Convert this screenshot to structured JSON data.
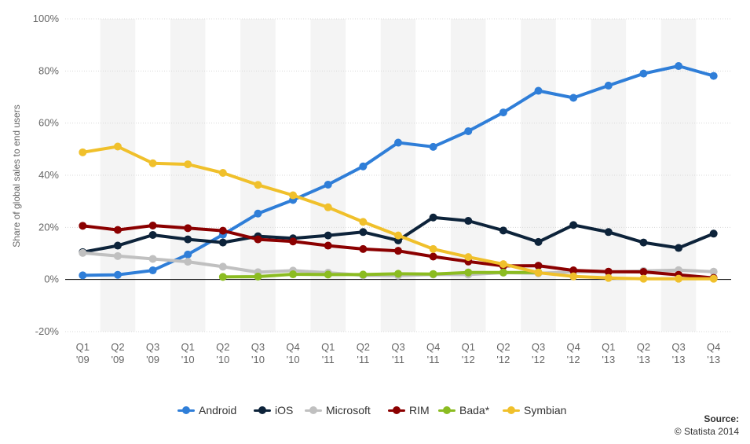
{
  "chart_data": {
    "type": "line",
    "title": "",
    "xlabel": "",
    "ylabel": "Share of global sales to end users",
    "ylim": [
      -20,
      100
    ],
    "yticks": [
      -20,
      0,
      20,
      40,
      60,
      80,
      100
    ],
    "ytick_labels": [
      "-20%",
      "0%",
      "20%",
      "40%",
      "60%",
      "80%",
      "100%"
    ],
    "categories": [
      [
        "Q1",
        "'09"
      ],
      [
        "Q2",
        "'09"
      ],
      [
        "Q3",
        "'09"
      ],
      [
        "Q1",
        "'10"
      ],
      [
        "Q2",
        "'10"
      ],
      [
        "Q3",
        "'10"
      ],
      [
        "Q4",
        "'10"
      ],
      [
        "Q1",
        "'11"
      ],
      [
        "Q2",
        "'11"
      ],
      [
        "Q3",
        "'11"
      ],
      [
        "Q4",
        "'11"
      ],
      [
        "Q1",
        "'12"
      ],
      [
        "Q2",
        "'12"
      ],
      [
        "Q3",
        "'12"
      ],
      [
        "Q4",
        "'12"
      ],
      [
        "Q1",
        "'13"
      ],
      [
        "Q2",
        "'13"
      ],
      [
        "Q3",
        "'13"
      ],
      [
        "Q4",
        "'13"
      ]
    ],
    "series": [
      {
        "name": "Android",
        "color": "#2f7ed8",
        "values": [
          1.6,
          1.8,
          3.5,
          9.6,
          17.2,
          25.3,
          30.5,
          36.4,
          43.4,
          52.5,
          50.9,
          56.9,
          64.1,
          72.4,
          69.7,
          74.4,
          79.0,
          81.9,
          78.1
        ]
      },
      {
        "name": "iOS",
        "color": "#0d233a",
        "values": [
          10.5,
          13.0,
          17.1,
          15.4,
          14.2,
          16.6,
          15.8,
          16.9,
          18.2,
          15.0,
          23.8,
          22.5,
          18.8,
          14.4,
          20.9,
          18.2,
          14.2,
          12.1,
          17.6
        ]
      },
      {
        "name": "Microsoft",
        "color": "#c0c0c0",
        "values": [
          10.2,
          9.0,
          7.9,
          6.8,
          4.9,
          2.8,
          3.4,
          2.6,
          1.6,
          1.5,
          1.9,
          1.9,
          2.6,
          2.4,
          2.9,
          2.9,
          3.3,
          3.6,
          3.0
        ]
      },
      {
        "name": "RIM",
        "color": "#8b0000",
        "values": [
          20.6,
          19.0,
          20.7,
          19.7,
          18.7,
          15.4,
          14.6,
          13.0,
          11.7,
          11.0,
          8.8,
          6.9,
          5.2,
          5.3,
          3.5,
          3.0,
          2.9,
          1.8,
          0.6
        ]
      },
      {
        "name": "Bada*",
        "color": "#8bbc21",
        "values": [
          null,
          null,
          null,
          null,
          1.0,
          1.1,
          2.0,
          1.9,
          1.9,
          2.2,
          2.1,
          2.7,
          2.7,
          2.7,
          null,
          null,
          null,
          null,
          null
        ]
      },
      {
        "name": "Symbian",
        "color": "#f0c02b",
        "values": [
          48.8,
          51.0,
          44.6,
          44.2,
          40.9,
          36.3,
          32.3,
          27.7,
          22.1,
          16.9,
          11.7,
          8.6,
          5.9,
          2.6,
          1.2,
          0.6,
          0.3,
          0.3,
          0.3
        ]
      }
    ],
    "legend_position": "bottom-center",
    "grid": true
  },
  "source": {
    "title": "Source:",
    "text": "© Statista 2014"
  }
}
